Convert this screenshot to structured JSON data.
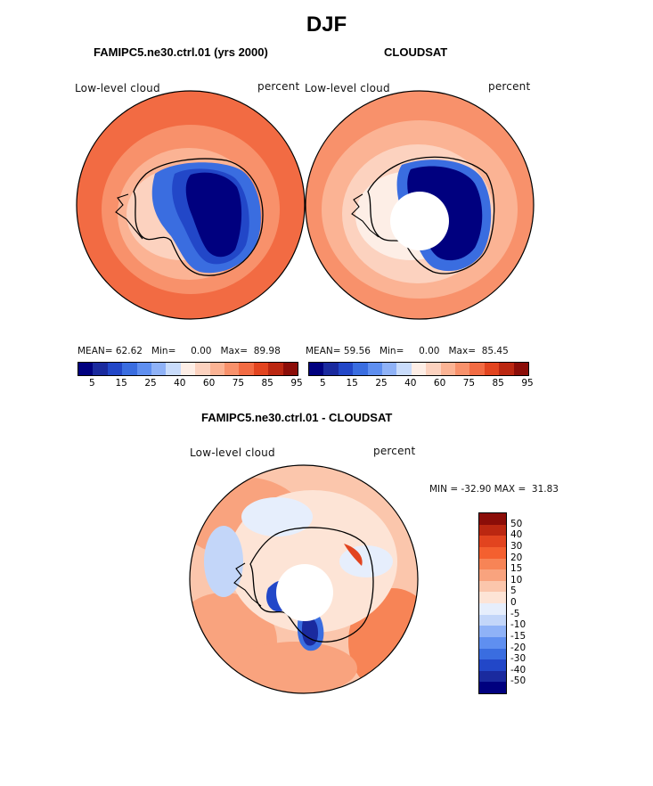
{
  "page": {
    "title": "DJF"
  },
  "panels": [
    {
      "title": "FAMIPC5.ne30.ctrl.01 (yrs 2000)",
      "left_label": "Low-level cloud",
      "right_label": "percent",
      "stats": {
        "mean_label": "MEAN=",
        "mean": "62.62",
        "min_label": "Min=",
        "min": "0.00",
        "max_label": "Max=",
        "max": "89.98"
      },
      "has_hole": false
    },
    {
      "title": "CLOUDSAT",
      "left_label": "Low-level cloud",
      "right_label": "percent",
      "stats": {
        "mean_label": "MEAN=",
        "mean": "59.56",
        "min_label": "Min=",
        "min": "0.00",
        "max_label": "Max=",
        "max": "85.45"
      },
      "has_hole": true
    }
  ],
  "diff_panel": {
    "title": "FAMIPC5.ne30.ctrl.01 - CLOUDSAT",
    "left_label": "Low-level cloud",
    "right_label": "percent",
    "minmax": "MIN = -32.90 MAX =  31.83"
  },
  "colorbar_top": {
    "colors": [
      "#00007f",
      "#1a2a9e",
      "#2247c8",
      "#3a6de0",
      "#5f8ff0",
      "#8fb2f7",
      "#c9dcfb",
      "#fdeee6",
      "#fcd2bf",
      "#fbb394",
      "#f8916b",
      "#f26b43",
      "#e2441f",
      "#bb2711",
      "#8b0d08"
    ],
    "tick_labels": [
      "5",
      "15",
      "25",
      "40",
      "60",
      "75",
      "85",
      "95"
    ]
  },
  "colorbar_diff": {
    "colors": [
      "#8b0d08",
      "#bb2711",
      "#e2441f",
      "#f4602f",
      "#f78456",
      "#f9a37e",
      "#fbc6ac",
      "#fde4d6",
      "#e6eefc",
      "#c3d6f9",
      "#8fb2f7",
      "#5f8ff0",
      "#3a6de0",
      "#2247c8",
      "#1a2a9e",
      "#00007f"
    ],
    "tick_labels": [
      "50",
      "40",
      "30",
      "20",
      "15",
      "10",
      "5",
      "0",
      "-5",
      "-10",
      "-15",
      "-20",
      "-30",
      "-40",
      "-50"
    ]
  },
  "map_colors": {
    "ocean_warm": "#f4693c",
    "ocean_mid": "#f9a37e",
    "ocean_light": "#fcd2bf",
    "ice_dark": "#00007f",
    "ice_mid": "#2247c8",
    "ice_light": "#8fb2f7",
    "diff_base": "#fbc6ac",
    "diff_pale": "#fde4d6",
    "diff_blue": "#8fb2f7",
    "diff_deep": "#1a2a9e",
    "diff_red": "#e2441f"
  }
}
